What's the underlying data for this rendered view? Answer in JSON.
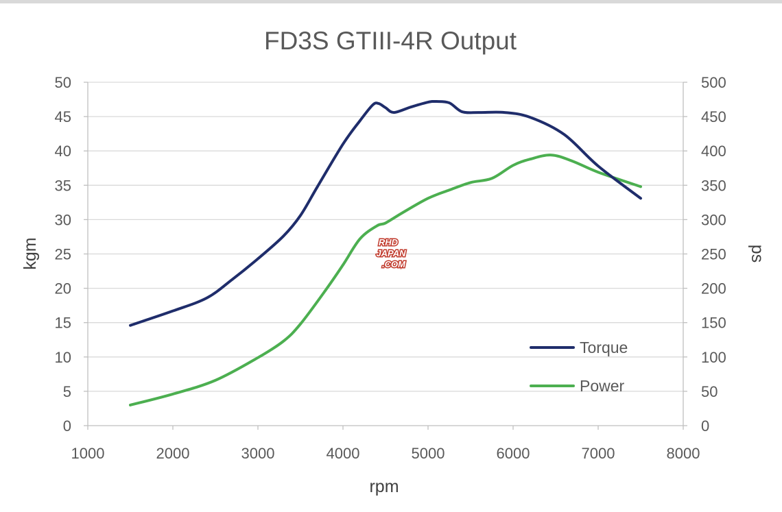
{
  "chart_data": {
    "type": "line",
    "title": "FD3S GTIII-4R Output",
    "xlabel": "rpm",
    "ylabel_left": "kgm",
    "ylabel_right": "ps",
    "xlim": [
      1000,
      8000
    ],
    "ylim_left": [
      0,
      50
    ],
    "ylim_right": [
      0,
      500
    ],
    "x_ticks": [
      "1000",
      "2000",
      "3000",
      "4000",
      "5000",
      "6000",
      "7000",
      "8000"
    ],
    "y_left_ticks": [
      "0",
      "5",
      "10",
      "15",
      "20",
      "25",
      "30",
      "35",
      "40",
      "45",
      "50"
    ],
    "y_right_ticks": [
      "0",
      "50",
      "100",
      "150",
      "200",
      "250",
      "300",
      "350",
      "400",
      "450",
      "500"
    ],
    "grid": true,
    "legend_position": "bottom-right",
    "series": [
      {
        "name": "Torque",
        "axis": "left",
        "color": "#1f2d6b",
        "x": [
          1500,
          2000,
          2400,
          2700,
          3000,
          3300,
          3500,
          3700,
          4000,
          4200,
          4350,
          4420,
          4500,
          4600,
          4800,
          5000,
          5100,
          5250,
          5400,
          5600,
          5900,
          6200,
          6600,
          7000,
          7500
        ],
        "values": [
          14.6,
          16.7,
          18.6,
          21.3,
          24.3,
          27.6,
          30.6,
          34.8,
          41.0,
          44.4,
          46.7,
          46.9,
          46.3,
          45.6,
          46.4,
          47.1,
          47.2,
          47.0,
          45.7,
          45.6,
          45.6,
          44.9,
          42.4,
          37.8,
          33.1
        ]
      },
      {
        "name": "Power",
        "axis": "right",
        "color": "#4caf50",
        "x": [
          1500,
          2000,
          2500,
          3000,
          3300,
          3500,
          3800,
          4000,
          4200,
          4400,
          4500,
          4700,
          5000,
          5250,
          5500,
          5750,
          6000,
          6200,
          6450,
          6700,
          7000,
          7500
        ],
        "values": [
          30,
          46,
          66,
          99,
          123,
          148,
          198,
          234,
          272,
          291,
          295,
          310,
          331,
          343,
          354,
          360,
          379,
          388,
          394,
          385,
          369,
          348
        ]
      }
    ]
  },
  "watermark": {
    "lines": [
      "RHD",
      "JAPAN",
      ".COM"
    ],
    "colors": {
      "fill": "#ffffff",
      "outline": "#c0392b"
    }
  }
}
